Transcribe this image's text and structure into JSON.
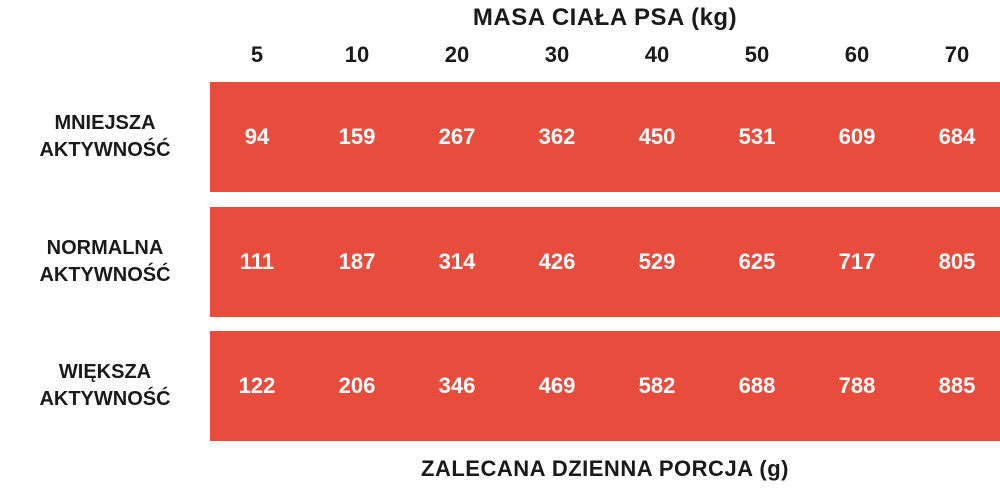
{
  "header": {
    "title": "MASA CIAŁA PSA (kg)",
    "columns": [
      5,
      10,
      20,
      30,
      40,
      50,
      60,
      70
    ]
  },
  "table": {
    "rows": [
      {
        "label": "MNIEJSZA AKTYWNOŚĆ",
        "values": [
          94,
          159,
          267,
          362,
          450,
          531,
          609,
          684
        ]
      },
      {
        "label": "NORMALNA AKTYWNOŚĆ",
        "values": [
          111,
          187,
          314,
          426,
          529,
          625,
          717,
          805
        ]
      },
      {
        "label": "WIĘKSZA AKTYWNOŚĆ",
        "values": [
          122,
          206,
          346,
          469,
          582,
          688,
          788,
          885
        ]
      }
    ]
  },
  "footer": {
    "text": "ZALECANA DZIENNA PORCJA (g)"
  }
}
